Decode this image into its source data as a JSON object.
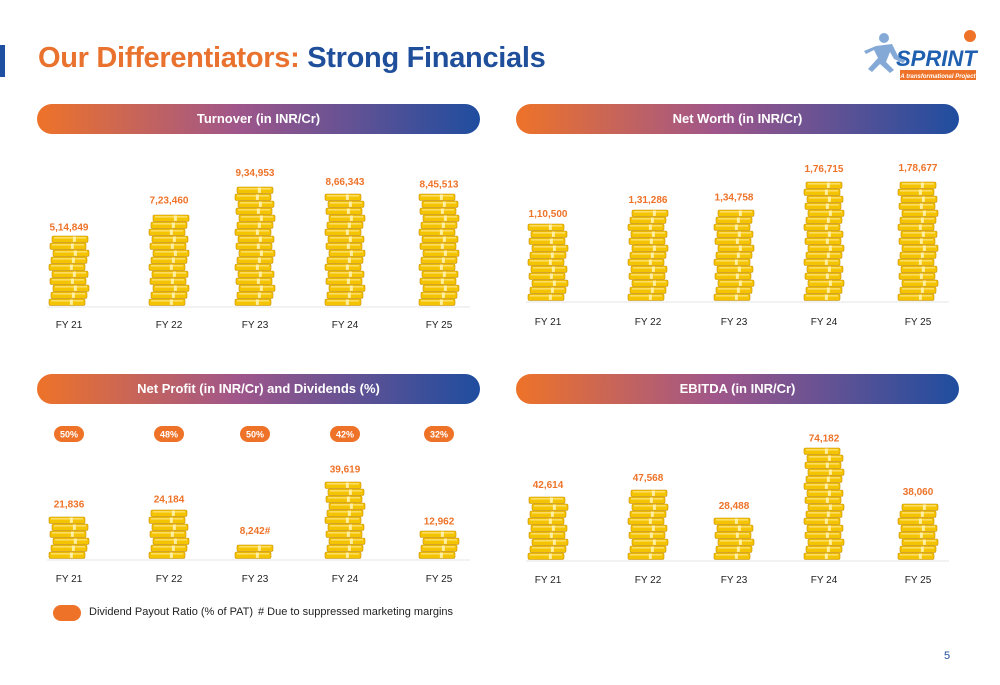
{
  "page": {
    "title_part1": "Our Differentiators:",
    "title_part2": "Strong Financials",
    "page_number": "5"
  },
  "logo": {
    "brand": "SPRINT",
    "tagline": "A transformational Project",
    "colors": {
      "accent": "#1e5fb0",
      "orange": "#ee7329"
    }
  },
  "legend": {
    "payout_label": "Dividend Payout Ratio (% of PAT)",
    "footnote": "# Due to suppressed marketing margins"
  },
  "colors": {
    "accent": "#ee7329",
    "brand_blue": "#1f4e9b",
    "coin": "#f5c400"
  },
  "chart_data": [
    {
      "id": "turnover",
      "type": "bar",
      "title": "Turnover (in INR/Cr)",
      "categories": [
        "FY 21",
        "FY 22",
        "FY 23",
        "FY 24",
        "FY 25"
      ],
      "values": [
        514849,
        723460,
        934953,
        866343,
        845513
      ],
      "value_labels": [
        "5,14,849",
        "7,23,460",
        "9,34,953",
        "8,66,343",
        "8,45,513"
      ],
      "ylim": [
        0,
        950000
      ]
    },
    {
      "id": "net-worth",
      "type": "bar",
      "title": "Net Worth (in INR/Cr)",
      "categories": [
        "FY 21",
        "FY 22",
        "FY 23",
        "FY 24",
        "FY 25"
      ],
      "values": [
        110500,
        131286,
        134758,
        176715,
        178677
      ],
      "value_labels": [
        "1,10,500",
        "1,31,286",
        "1,34,758",
        "1,76,715",
        "1,78,677"
      ],
      "ylim": [
        0,
        180000
      ]
    },
    {
      "id": "net-profit",
      "type": "bar",
      "title": "Net Profit (in INR/Cr) and Dividends (%)",
      "categories": [
        "FY 21",
        "FY 22",
        "FY 23",
        "FY 24",
        "FY 25"
      ],
      "values": [
        21836,
        24184,
        8242,
        39619,
        12962
      ],
      "value_labels": [
        "21,836",
        "24,184",
        "8,242#",
        "39,619",
        "12,962"
      ],
      "dividend_payout": [
        "50%",
        "48%",
        "50%",
        "42%",
        "32%"
      ],
      "ylim": [
        0,
        47000
      ]
    },
    {
      "id": "ebitda",
      "type": "bar",
      "title": "EBITDA (in INR/Cr)",
      "categories": [
        "FY 21",
        "FY 22",
        "FY 23",
        "FY 24",
        "FY 25"
      ],
      "values": [
        42614,
        47568,
        28488,
        74182,
        38060
      ],
      "value_labels": [
        "42,614",
        "47,568",
        "28,488",
        "74,182",
        "38,060"
      ],
      "ylim": [
        0,
        76000
      ]
    }
  ]
}
